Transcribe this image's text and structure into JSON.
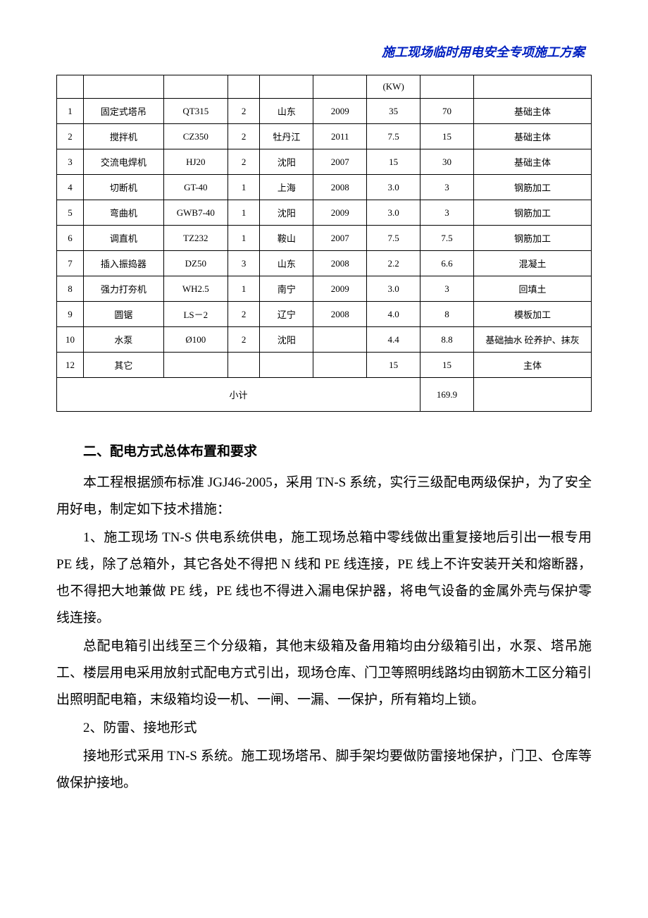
{
  "header": {
    "title": "施工现场临时用电安全专项施工方案"
  },
  "table": {
    "kw_label": "(KW)",
    "rows": [
      {
        "idx": "1",
        "name": "固定式塔吊",
        "model": "QT315",
        "qty": "2",
        "origin": "山东",
        "year": "2009",
        "p1": "35",
        "p2": "70",
        "usage": "基础主体"
      },
      {
        "idx": "2",
        "name": "搅拌机",
        "model": "CZ350",
        "qty": "2",
        "origin": "牡丹江",
        "year": "2011",
        "p1": "7.5",
        "p2": "15",
        "usage": "基础主体"
      },
      {
        "idx": "3",
        "name": "交流电焊机",
        "model": "HJ20",
        "qty": "2",
        "origin": "沈阳",
        "year": "2007",
        "p1": "15",
        "p2": "30",
        "usage": "基础主体"
      },
      {
        "idx": "4",
        "name": "切断机",
        "model": "GT-40",
        "qty": "1",
        "origin": "上海",
        "year": "2008",
        "p1": "3.0",
        "p2": "3",
        "usage": "钢筋加工"
      },
      {
        "idx": "5",
        "name": "弯曲机",
        "model": "GWB7-40",
        "qty": "1",
        "origin": "沈阳",
        "year": "2009",
        "p1": "3.0",
        "p2": "3",
        "usage": "钢筋加工"
      },
      {
        "idx": "6",
        "name": "调直机",
        "model": "TZ232",
        "qty": "1",
        "origin": "鞍山",
        "year": "2007",
        "p1": "7.5",
        "p2": "7.5",
        "usage": "钢筋加工"
      },
      {
        "idx": "7",
        "name": "插入振捣器",
        "model": "DZ50",
        "qty": "3",
        "origin": "山东",
        "year": "2008",
        "p1": "2.2",
        "p2": "6.6",
        "usage": "混凝土"
      },
      {
        "idx": "8",
        "name": "强力打夯机",
        "model": "WH2.5",
        "qty": "1",
        "origin": "南宁",
        "year": "2009",
        "p1": "3.0",
        "p2": "3",
        "usage": "回填土"
      },
      {
        "idx": "9",
        "name": "圆锯",
        "model": "LS－2",
        "qty": "2",
        "origin": "辽宁",
        "year": "2008",
        "p1": "4.0",
        "p2": "8",
        "usage": "模板加工"
      },
      {
        "idx": "10",
        "name": "水泵",
        "model": "Ø100",
        "qty": "2",
        "origin": "沈阳",
        "year": "",
        "p1": "4.4",
        "p2": "8.8",
        "usage": "基础抽水 砼养护、抹灰"
      },
      {
        "idx": "12",
        "name": "其它",
        "model": "",
        "qty": "",
        "origin": "",
        "year": "",
        "p1": "15",
        "p2": "15",
        "usage": "主体"
      }
    ],
    "subtotal_label": "小计",
    "subtotal_value": "169.9"
  },
  "section2": {
    "heading": "二、配电方式总体布置和要求",
    "p1": "本工程根据颁布标准 JGJ46-2005，采用 TN-S 系统，实行三级配电两级保护，为了安全用好电，制定如下技术措施：",
    "p2": "1、施工现场 TN-S 供电系统供电，施工现场总箱中零线做出重复接地后引出一根专用 PE 线，除了总箱外，其它各处不得把 N 线和 PE 线连接，PE 线上不许安装开关和熔断器，也不得把大地兼做 PE 线，PE 线也不得进入漏电保护器，将电气设备的金属外壳与保护零线连接。",
    "p3": "总配电箱引出线至三个分级箱，其他末级箱及备用箱均由分级箱引出，水泵、塔吊施工、楼层用电采用放射式配电方式引出，现场仓库、门卫等照明线路均由钢筋木工区分箱引出照明配电箱，末级箱均设一机、一闸、一漏、一保护，所有箱均上锁。",
    "p4": "2、防雷、接地形式",
    "p5": "接地形式采用 TN-S 系统。施工现场塔吊、脚手架均要做防雷接地保护，门卫、仓库等做保护接地。"
  },
  "style": {
    "header_color": "#0020c0",
    "text_color": "#000000",
    "border_color": "#000000",
    "background_color": "#ffffff",
    "table_fontsize": 13,
    "body_fontsize": 19
  }
}
